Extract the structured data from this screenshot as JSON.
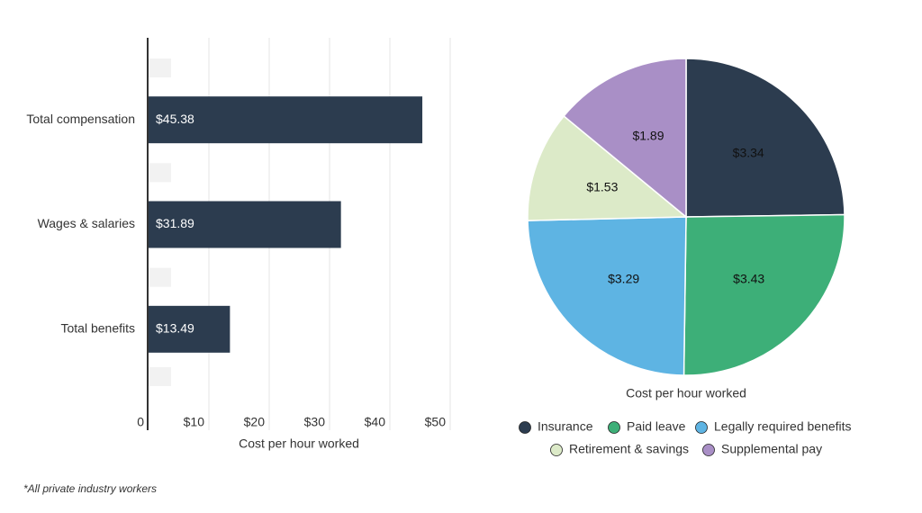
{
  "chart_data": [
    {
      "type": "bar",
      "orientation": "horizontal",
      "categories": [
        "Total compensation",
        "Wages & salaries",
        "Total benefits"
      ],
      "values": [
        45.38,
        31.89,
        13.49
      ],
      "value_labels": [
        "$45.38",
        "$31.89",
        "$13.49"
      ],
      "color": "#2c3c4f",
      "x_label": "Cost per hour worked",
      "xlim": [
        0,
        50
      ],
      "xticks": [
        0,
        {
          "value": 10,
          "label": "$10"
        },
        {
          "value": 20,
          "label": "$20"
        },
        {
          "value": 30,
          "label": "$30"
        },
        {
          "value": 40,
          "label": "$40"
        },
        {
          "value": 50,
          "label": "$50"
        }
      ],
      "grid": true
    },
    {
      "type": "pie",
      "categories": [
        "Insurance",
        "Paid leave",
        "Legally required benefits",
        "Retirement & savings",
        "Supplemental pay"
      ],
      "values": [
        3.34,
        3.43,
        3.29,
        1.53,
        1.89
      ],
      "value_labels": [
        "$3.34",
        "$3.43",
        "$3.29",
        "$1.53",
        "$1.89"
      ],
      "colors": [
        "#2c3c4f",
        "#3daf78",
        "#5eb4e3",
        "#dceac8",
        "#a98fc6"
      ],
      "x_label": "Cost per hour worked",
      "legend": "bottom"
    }
  ],
  "footnote": "*All private industry workers"
}
